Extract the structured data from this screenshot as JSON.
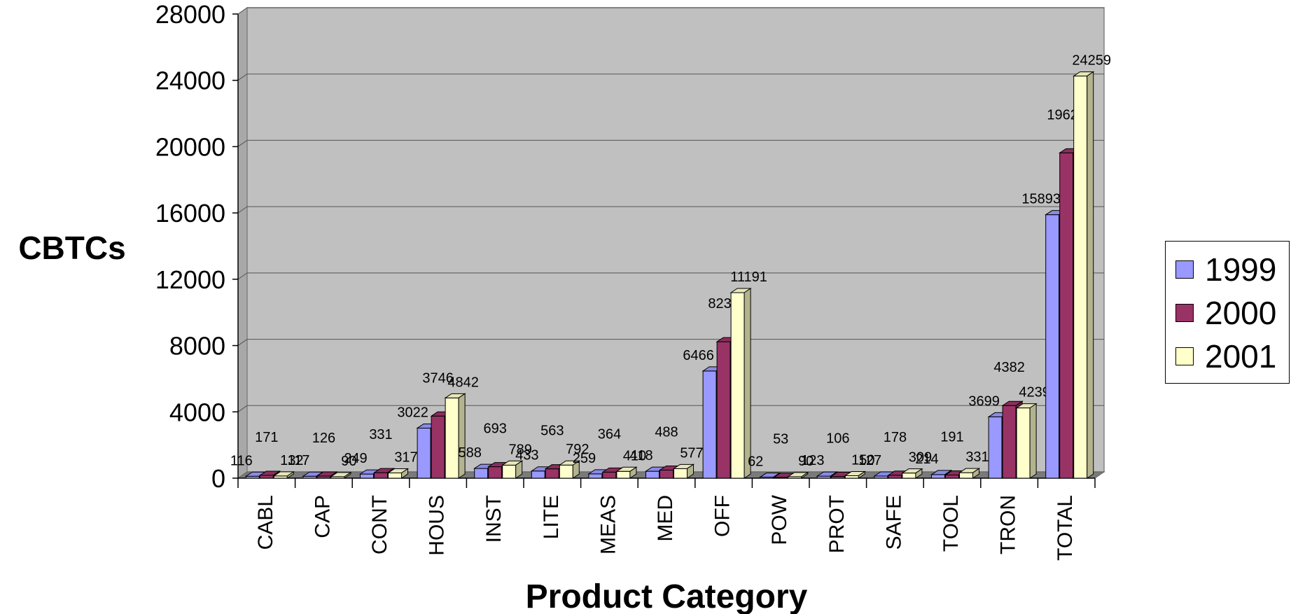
{
  "chart_data": {
    "type": "bar",
    "xlabel": "Product Category",
    "ylabel": "CBTCs",
    "ylim": [
      0,
      28000
    ],
    "yticks": [
      "0",
      "4000",
      "8000",
      "12000",
      "16000",
      "20000",
      "24000",
      "28000"
    ],
    "grid": true,
    "legend_position": "right",
    "categories": [
      "CABL",
      "CAP",
      "CONT",
      "HOUS",
      "INST",
      "LITE",
      "MEAS",
      "MED",
      "OFF",
      "POW",
      "PROT",
      "SAFE",
      "TOOL",
      "TRON",
      "TOTAL"
    ],
    "series": [
      {
        "name": "1999",
        "color": "#9999ff",
        "values": [
          116,
          117,
          249,
          3022,
          588,
          433,
          259,
          418,
          6466,
          62,
          123,
          127,
          214,
          3699,
          15893
        ]
      },
      {
        "name": "2000",
        "color": "#993366",
        "values": [
          171,
          126,
          331,
          3746,
          693,
          563,
          364,
          488,
          8232,
          53,
          106,
          178,
          191,
          4382,
          19624
        ]
      },
      {
        "name": "2001",
        "color": "#ffffcc",
        "values": [
          132,
          90,
          317,
          4842,
          789,
          792,
          410,
          577,
          11191,
          90,
          150,
          309,
          331,
          4239,
          24259
        ]
      }
    ]
  }
}
